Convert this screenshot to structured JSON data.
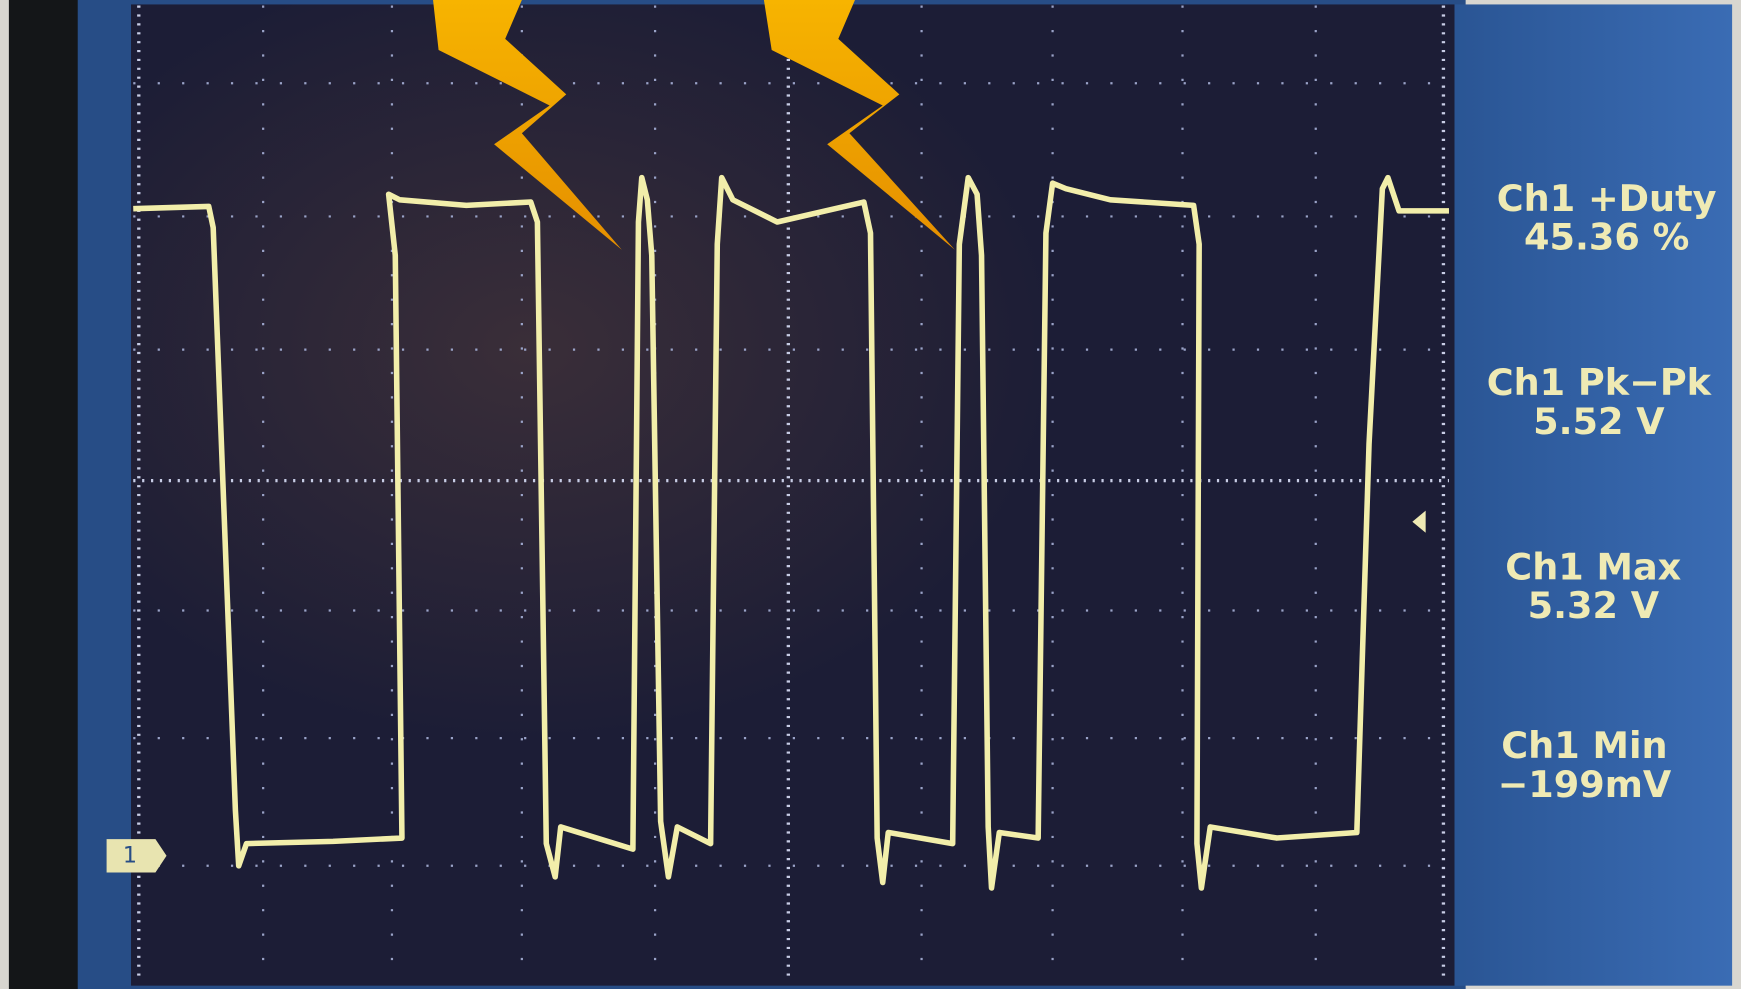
{
  "channel_marker": "1",
  "measurements": [
    {
      "label": "Ch1 +Duty",
      "value": "45.36 %"
    },
    {
      "label": "Ch1 Pk−Pk",
      "value": "5.52 V"
    },
    {
      "label": "Ch1 Max",
      "value": "5.32 V"
    },
    {
      "label": "Ch1 Min",
      "value": "−199mV"
    }
  ]
}
